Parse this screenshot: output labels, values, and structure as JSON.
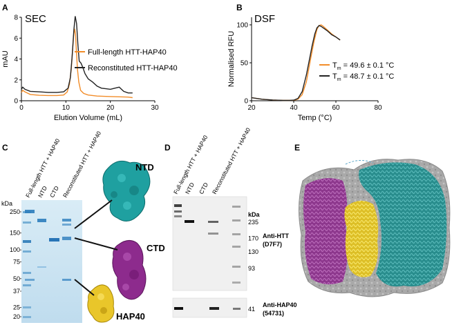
{
  "panels": {
    "a": {
      "letter": "A",
      "title": "SEC"
    },
    "b": {
      "letter": "B",
      "title": "DSF"
    },
    "c": {
      "letter": "C"
    },
    "d": {
      "letter": "D"
    },
    "e": {
      "letter": "E"
    }
  },
  "chart_data": [
    {
      "type": "line",
      "title": "SEC",
      "xlabel": "Elution Volume (mL)",
      "ylabel": "mAU",
      "xlim": [
        0,
        30
      ],
      "ylim": [
        0,
        8
      ],
      "xticks": [
        "0",
        "10",
        "20",
        "30"
      ],
      "yticks": [
        "0",
        "2",
        "4",
        "6",
        "8"
      ],
      "grid": false,
      "legend_position": "right",
      "series": [
        {
          "name": "Full-length HTT-HAP40",
          "color": "#f28c28",
          "x": [
            0.0,
            0.3,
            0.8,
            2,
            4,
            6,
            8,
            9.5,
            10.3,
            10.8,
            11.2,
            11.5,
            11.75,
            11.95,
            12.15,
            12.35,
            12.6,
            12.9,
            13.3,
            14,
            15,
            17,
            20,
            22,
            24,
            25
          ],
          "y": [
            0.8,
            1.0,
            0.85,
            0.6,
            0.52,
            0.5,
            0.5,
            0.55,
            0.85,
            1.6,
            3.0,
            4.8,
            6.3,
            6.9,
            6.4,
            4.8,
            3.0,
            1.8,
            1.0,
            0.7,
            0.55,
            0.45,
            0.4,
            0.38,
            0.35,
            0.3
          ]
        },
        {
          "name": "Reconstituted HTT-HAP40",
          "color": "#222222",
          "x": [
            0.0,
            0.3,
            0.8,
            2,
            4,
            6,
            8,
            9.5,
            10.5,
            11.0,
            11.4,
            11.8,
            12.1,
            12.4,
            12.7,
            13.0,
            13.4,
            13.8,
            14.3,
            15,
            16,
            17,
            18,
            19,
            20,
            21,
            22,
            23,
            24,
            25
          ],
          "y": [
            1.1,
            1.3,
            1.1,
            0.9,
            0.85,
            0.8,
            0.8,
            0.85,
            1.2,
            2.2,
            4.2,
            6.8,
            8.1,
            7.4,
            5.4,
            3.8,
            3.6,
            3.2,
            2.6,
            2.1,
            1.8,
            1.4,
            1.2,
            1.15,
            1.1,
            1.2,
            1.3,
            0.9,
            0.75,
            0.75
          ]
        }
      ]
    },
    {
      "type": "line",
      "title": "DSF",
      "xlabel": "Temp (°C)",
      "ylabel": "Normalised RFU",
      "xlim": [
        20,
        80
      ],
      "ylim": [
        0,
        110
      ],
      "xticks": [
        "20",
        "40",
        "60",
        "80"
      ],
      "yticks": [
        "0",
        "50",
        "100"
      ],
      "grid": false,
      "legend_position": "right",
      "series": [
        {
          "name": "Tm = 49.6 ± 0.1 °C",
          "color": "#f28c28",
          "x": [
            20,
            25,
            30,
            35,
            38,
            40,
            42,
            44,
            46,
            48,
            49.6,
            51,
            52,
            53,
            54,
            56,
            58,
            60,
            62
          ],
          "y": [
            4,
            2,
            1,
            0.5,
            0.5,
            0.6,
            2,
            8,
            25,
            55,
            78,
            94,
            99,
            100,
            98,
            93,
            88,
            84,
            80
          ]
        },
        {
          "name": "Tm = 48.7 ± 0.1 °C",
          "color": "#222222",
          "x": [
            20,
            25,
            30,
            35,
            38,
            40,
            42,
            44,
            46,
            48,
            48.7,
            50,
            51,
            52,
            53,
            54,
            56,
            58,
            60,
            62
          ],
          "y": [
            4,
            2,
            1,
            0.5,
            0.5,
            0.8,
            3,
            12,
            34,
            62,
            72,
            88,
            96,
            99,
            98,
            96,
            92,
            87,
            84,
            80
          ]
        }
      ]
    }
  ],
  "legend_b": [
    {
      "t": "T",
      "sub": "m",
      "rest": " = 49.6 ± 0.1 °C"
    },
    {
      "t": "T",
      "sub": "m",
      "rest": " = 48.7 ± 0.1 °C"
    }
  ],
  "gel_c": {
    "kda_label": "kDa",
    "lanes": [
      "Full-length HTT + HAP40",
      "NTD",
      "CTD",
      "Reconstituted HTT + HAP40"
    ],
    "markers": [
      {
        "label": "250",
        "kda": 250
      },
      {
        "label": "150",
        "kda": 150
      },
      {
        "label": "100",
        "kda": 100
      },
      {
        "label": "75",
        "kda": 75
      },
      {
        "label": "50",
        "kda": 50
      },
      {
        "label": "37",
        "kda": 37
      },
      {
        "label": "25",
        "kda": 25
      },
      {
        "label": "20",
        "kda": 20
      }
    ],
    "structure_labels": {
      "ntd": "NTD",
      "ctd": "CTD",
      "hap40": "HAP40"
    }
  },
  "blot_d": {
    "lanes": [
      "Full-length HTT + HAP40",
      "NTD",
      "CTD",
      "Reconstituted HTT + HAP40"
    ],
    "kda_label": "kDa",
    "markers_top": [
      {
        "label": "235",
        "kda": 235
      },
      {
        "label": "170",
        "kda": 170
      },
      {
        "label": "130",
        "kda": 130
      },
      {
        "label": "93",
        "kda": 93
      }
    ],
    "markers_bottom": [
      {
        "label": "41",
        "kda": 41
      }
    ],
    "antibody_top": [
      "Anti-HTT",
      "(D7F7)"
    ],
    "antibody_bottom": [
      "Anti-HAP40",
      "(54731)"
    ]
  }
}
